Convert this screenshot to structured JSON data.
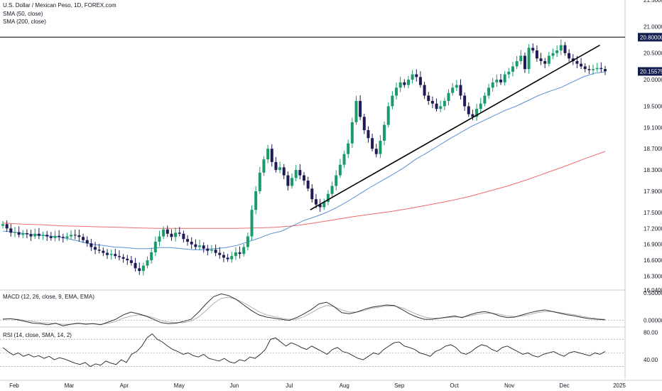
{
  "chart_data": {
    "type": "candlestick",
    "title": "U.S. Dollar / Mexican Peso, 1D, FOREX.com",
    "legend": [
      "SMA (50, close)",
      "SMA (200, close)"
    ],
    "colors": {
      "up": "#26a69a",
      "up_body": "#1a9b6c",
      "down": "#1e1b57",
      "sma50": "#5b8fd6",
      "sma200": "#ef6c6c",
      "trendline": "#000000",
      "hline": "#000000",
      "macd": "#333333",
      "signal": "#b0b0b0",
      "rsi": "#222222",
      "last_price_bg": "#131c4e"
    },
    "x_axis_labels": [
      "Feb",
      "Mar",
      "Apr",
      "May",
      "Jun",
      "Jul",
      "Aug",
      "Sep",
      "Oct",
      "Nov",
      "Dec",
      "2025"
    ],
    "price_axis_labels": [
      "21.50000",
      "21.00000",
      "20.50000",
      "20.00000",
      "19.50000",
      "19.10000",
      "18.70000",
      "18.30000",
      "17.90000",
      "17.50000",
      "17.20000",
      "16.90000",
      "16.60000",
      "16.30000",
      "16.04000"
    ],
    "price_range": [
      16.04,
      21.5
    ],
    "horizontal_line": {
      "value": 20.8,
      "label": "20.80000"
    },
    "last_price": {
      "value": 20.15575,
      "label": "20.15575"
    },
    "trendline": {
      "start": {
        "date": "2024-07-15",
        "value": 17.55
      },
      "end": {
        "date": "2024-12-24",
        "value": 20.65
      }
    },
    "closes": [
      17.28,
      17.2,
      17.12,
      17.13,
      17.08,
      17.11,
      17.09,
      17.05,
      17.1,
      17.06,
      17.08,
      17.05,
      17.02,
      17.06,
      17.04,
      17.02,
      17.05,
      17.08,
      17.07,
      17.04,
      16.98,
      16.92,
      16.85,
      16.8,
      16.78,
      16.74,
      16.7,
      16.72,
      16.68,
      16.66,
      16.63,
      16.6,
      16.55,
      16.45,
      16.4,
      16.5,
      16.6,
      16.75,
      16.95,
      17.05,
      17.18,
      17.1,
      17.04,
      17.12,
      17.1,
      17.0,
      16.95,
      16.9,
      16.85,
      16.88,
      16.82,
      16.78,
      16.8,
      16.74,
      16.7,
      16.65,
      16.62,
      16.68,
      16.75,
      16.72,
      16.85,
      17.05,
      17.55,
      17.9,
      18.25,
      18.5,
      18.7,
      18.45,
      18.3,
      18.35,
      18.2,
      18.0,
      18.15,
      18.3,
      18.2,
      18.1,
      17.95,
      17.75,
      17.65,
      17.6,
      17.7,
      17.85,
      18.0,
      18.2,
      18.4,
      18.6,
      18.8,
      19.2,
      19.6,
      19.3,
      19.05,
      18.9,
      18.7,
      18.6,
      18.85,
      19.15,
      19.5,
      19.7,
      19.85,
      19.95,
      19.9,
      20.0,
      20.1,
      20.05,
      19.9,
      19.7,
      19.6,
      19.55,
      19.45,
      19.5,
      19.6,
      19.75,
      19.85,
      19.9,
      19.7,
      19.5,
      19.35,
      19.3,
      19.45,
      19.55,
      19.7,
      19.85,
      19.95,
      20.0,
      19.95,
      20.1,
      20.15,
      20.25,
      20.35,
      20.45,
      20.2,
      20.6,
      20.55,
      20.4,
      20.35,
      20.3,
      20.45,
      20.5,
      20.55,
      20.65,
      20.5,
      20.4,
      20.35,
      20.3,
      20.25,
      20.2,
      20.18,
      20.2,
      20.22,
      20.2,
      20.16
    ],
    "sma50": [
      17.15,
      17.13,
      17.1,
      17.08,
      17.06,
      17.04,
      17.0,
      16.95,
      16.9,
      16.88,
      16.85,
      16.84,
      16.82,
      16.82,
      16.84,
      16.84,
      16.82,
      16.8,
      16.8,
      16.82,
      16.84,
      16.88,
      16.95,
      17.02,
      17.1,
      17.15,
      17.25,
      17.35,
      17.42,
      17.5,
      17.6,
      17.72,
      17.85,
      17.98,
      18.1,
      18.22,
      18.35,
      18.5,
      18.62,
      18.75,
      18.88,
      19.0,
      19.12,
      19.22,
      19.32,
      19.42,
      19.5,
      19.6,
      19.7,
      19.78,
      19.85,
      19.95,
      20.05,
      20.12,
      20.15
    ],
    "sma200": [
      17.3,
      17.28,
      17.27,
      17.25,
      17.24,
      17.23,
      17.22,
      17.21,
      17.2,
      17.2,
      17.2,
      17.2,
      17.2,
      17.21,
      17.22,
      17.25,
      17.3,
      17.36,
      17.42,
      17.47,
      17.52,
      17.58,
      17.65,
      17.72,
      17.8,
      17.9,
      18.0,
      18.12,
      18.25,
      18.38,
      18.52,
      18.65
    ],
    "macd": {
      "title": "MACD (12, 26, close, 9, EMA, EMA)",
      "axis_labels": [
        "0.50000",
        "0.00000"
      ],
      "range": [
        -0.12,
        0.55
      ],
      "macd_values": [
        0.02,
        0.03,
        0.01,
        -0.02,
        -0.05,
        -0.06,
        -0.08,
        -0.05,
        -0.1,
        -0.07,
        -0.05,
        -0.07,
        -0.06,
        -0.08,
        -0.03,
        0.02,
        0.1,
        0.15,
        0.12,
        0.08,
        0.02,
        -0.04,
        -0.06,
        -0.05,
        -0.02,
        0.02,
        0.15,
        0.3,
        0.43,
        0.48,
        0.45,
        0.38,
        0.28,
        0.18,
        0.1,
        0.06,
        0.04,
        0.02,
        0.0,
        0.05,
        0.12,
        0.2,
        0.3,
        0.33,
        0.25,
        0.14,
        0.12,
        0.15,
        0.2,
        0.24,
        0.26,
        0.28,
        0.27,
        0.2,
        0.12,
        0.06,
        0.02,
        0.02,
        0.04,
        0.06,
        0.08,
        0.05,
        0.1,
        0.14,
        0.16,
        0.13,
        0.08,
        0.05,
        0.06,
        0.1,
        0.14,
        0.17,
        0.19,
        0.16,
        0.13,
        0.1,
        0.08,
        0.05,
        0.03,
        0.02,
        0.01
      ],
      "signal_values": [
        0.03,
        0.03,
        0.02,
        0.0,
        -0.02,
        -0.04,
        -0.05,
        -0.06,
        -0.07,
        -0.07,
        -0.06,
        -0.06,
        -0.06,
        -0.07,
        -0.05,
        -0.02,
        0.04,
        0.08,
        0.1,
        0.08,
        0.05,
        0.0,
        -0.03,
        -0.04,
        -0.04,
        -0.01,
        0.06,
        0.18,
        0.31,
        0.4,
        0.42,
        0.38,
        0.32,
        0.24,
        0.16,
        0.1,
        0.07,
        0.04,
        0.02,
        0.02,
        0.07,
        0.14,
        0.22,
        0.27,
        0.25,
        0.19,
        0.15,
        0.15,
        0.18,
        0.22,
        0.24,
        0.26,
        0.26,
        0.23,
        0.17,
        0.11,
        0.06,
        0.04,
        0.04,
        0.05,
        0.06,
        0.06,
        0.08,
        0.11,
        0.13,
        0.13,
        0.11,
        0.08,
        0.07,
        0.08,
        0.11,
        0.14,
        0.16,
        0.16,
        0.14,
        0.12,
        0.1,
        0.07,
        0.05,
        0.03,
        0.02
      ]
    },
    "rsi": {
      "title": "RSI (14, close, SMA, 14, 2)",
      "axis_labels": [
        "80.00",
        "40.00"
      ],
      "range": [
        15,
        88
      ],
      "band_levels": [
        70,
        50,
        30
      ],
      "values": [
        58,
        52,
        47,
        50,
        45,
        48,
        44,
        46,
        42,
        45,
        40,
        43,
        41,
        38,
        35,
        33,
        36,
        30,
        34,
        32,
        38,
        35,
        33,
        40,
        36,
        48,
        52,
        60,
        72,
        78,
        70,
        66,
        60,
        55,
        52,
        48,
        50,
        46,
        44,
        48,
        42,
        40,
        38,
        42,
        37,
        35,
        40,
        38,
        44,
        42,
        48,
        55,
        70,
        72,
        66,
        60,
        65,
        62,
        58,
        55,
        60,
        56,
        52,
        48,
        55,
        58,
        52,
        50,
        46,
        42,
        40,
        45,
        50,
        48,
        55,
        60,
        65,
        66,
        60,
        58,
        55,
        50,
        48,
        45,
        52,
        55,
        60,
        62,
        58,
        50,
        48,
        52,
        58,
        62,
        60,
        55,
        52,
        58,
        60,
        56,
        52,
        48,
        50,
        46,
        44,
        48,
        50,
        52,
        48,
        45,
        50,
        52,
        50,
        48,
        46,
        50,
        48,
        52
      ]
    }
  }
}
